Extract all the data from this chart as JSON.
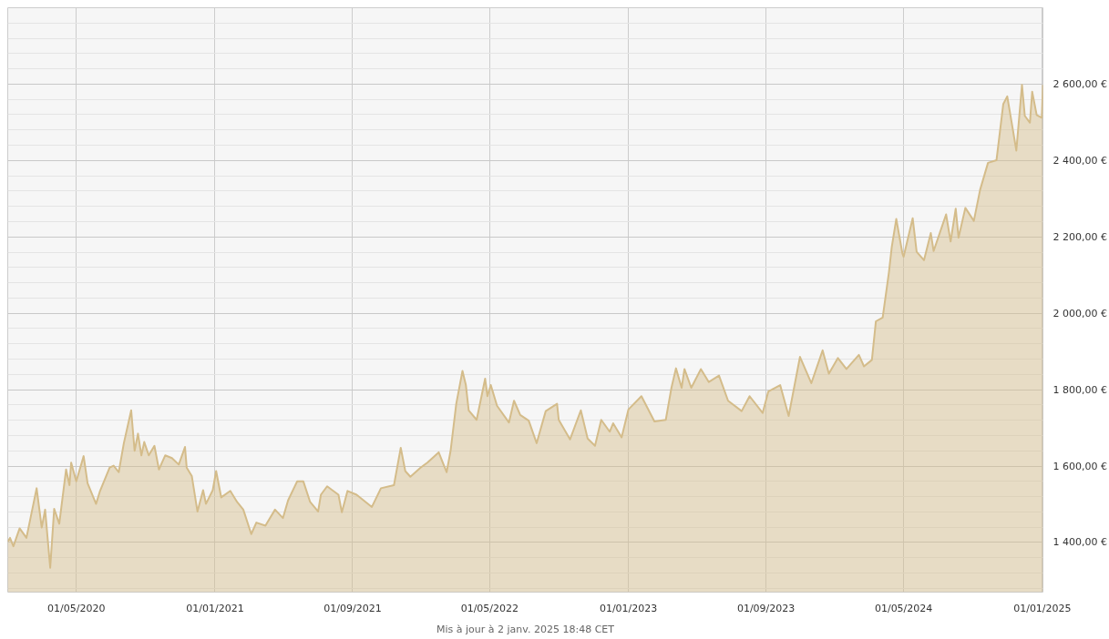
{
  "chart_data": {
    "type": "area",
    "x": [
      "2020-01-01",
      "2020-01-05",
      "2020-01-11",
      "2020-01-22",
      "2020-02-03",
      "2020-02-21",
      "2020-03-01",
      "2020-03-07",
      "2020-03-16",
      "2020-03-23",
      "2020-04-01",
      "2020-04-13",
      "2020-04-19",
      "2020-04-22",
      "2020-05-01",
      "2020-05-14",
      "2020-05-21",
      "2020-06-05",
      "2020-06-12",
      "2020-06-29",
      "2020-07-06",
      "2020-07-15",
      "2020-07-24",
      "2020-08-06",
      "2020-08-12",
      "2020-08-18",
      "2020-08-24",
      "2020-08-29",
      "2020-09-06",
      "2020-09-16",
      "2020-09-24",
      "2020-10-05",
      "2020-10-17",
      "2020-10-29",
      "2020-11-09",
      "2020-11-12",
      "2020-11-21",
      "2020-12-01",
      "2020-12-11",
      "2020-12-16",
      "2020-12-28",
      "2021-01-03",
      "2021-01-12",
      "2021-01-28",
      "2021-02-09",
      "2021-02-20",
      "2021-03-06",
      "2021-03-15",
      "2021-03-31",
      "2021-04-17",
      "2021-05-01",
      "2021-05-10",
      "2021-05-26",
      "2021-06-06",
      "2021-06-18",
      "2021-07-02",
      "2021-07-07",
      "2021-07-18",
      "2021-08-07",
      "2021-08-13",
      "2021-08-23",
      "2021-09-08",
      "2021-10-05",
      "2021-10-21",
      "2021-11-13",
      "2021-11-25",
      "2021-12-03",
      "2021-12-12",
      "2021-12-30",
      "2022-01-11",
      "2022-01-31",
      "2022-02-14",
      "2022-02-21",
      "2022-03-03",
      "2022-03-14",
      "2022-03-20",
      "2022-03-25",
      "2022-04-08",
      "2022-04-23",
      "2022-04-27",
      "2022-05-03",
      "2022-05-14",
      "2022-06-04",
      "2022-06-13",
      "2022-06-24",
      "2022-07-09",
      "2022-07-23",
      "2022-08-08",
      "2022-08-28",
      "2022-08-31",
      "2022-09-20",
      "2022-10-09",
      "2022-10-21",
      "2022-11-03",
      "2022-11-14",
      "2022-11-29",
      "2022-12-05",
      "2022-12-20",
      "2023-01-01",
      "2023-01-24",
      "2023-02-16",
      "2023-03-08",
      "2023-03-18",
      "2023-03-26",
      "2023-04-05",
      "2023-04-10",
      "2023-04-22",
      "2023-05-09",
      "2023-05-23",
      "2023-06-10",
      "2023-06-26",
      "2023-07-20",
      "2023-08-03",
      "2023-08-26",
      "2023-09-05",
      "2023-09-26",
      "2023-10-11",
      "2023-10-31",
      "2023-11-20",
      "2023-12-10",
      "2023-12-21",
      "2024-01-06",
      "2024-01-21",
      "2024-02-12",
      "2024-02-21",
      "2024-03-06",
      "2024-03-13",
      "2024-03-25",
      "2024-04-05",
      "2024-04-10",
      "2024-04-18",
      "2024-04-29",
      "2024-05-01",
      "2024-05-17",
      "2024-05-24",
      "2024-06-06",
      "2024-06-18",
      "2024-06-23",
      "2024-07-15",
      "2024-07-23",
      "2024-08-01",
      "2024-08-06",
      "2024-08-18",
      "2024-09-02",
      "2024-09-13",
      "2024-09-27",
      "2024-10-12",
      "2024-10-24",
      "2024-10-31",
      "2024-11-10",
      "2024-11-16",
      "2024-11-26",
      "2024-12-01",
      "2024-12-10",
      "2024-12-14",
      "2024-12-22",
      "2024-12-31",
      "2025-01-02"
    ],
    "series": [
      {
        "color": "#d4bc8a",
        "values": [
          1402,
          1412,
          1390,
          1437,
          1412,
          1542,
          1439,
          1486,
          1334,
          1488,
          1449,
          1591,
          1550,
          1609,
          1560,
          1626,
          1555,
          1501,
          1535,
          1596,
          1601,
          1584,
          1660,
          1746,
          1640,
          1685,
          1628,
          1663,
          1628,
          1653,
          1591,
          1628,
          1621,
          1604,
          1650,
          1596,
          1574,
          1481,
          1537,
          1501,
          1537,
          1587,
          1518,
          1535,
          1506,
          1486,
          1422,
          1452,
          1444,
          1486,
          1464,
          1510,
          1560,
          1560,
          1506,
          1481,
          1525,
          1547,
          1525,
          1479,
          1535,
          1525,
          1493,
          1542,
          1550,
          1648,
          1587,
          1572,
          1596,
          1609,
          1636,
          1584,
          1640,
          1763,
          1849,
          1812,
          1746,
          1721,
          1829,
          1783,
          1812,
          1758,
          1714,
          1771,
          1734,
          1719,
          1660,
          1744,
          1763,
          1721,
          1670,
          1746,
          1672,
          1653,
          1721,
          1690,
          1712,
          1675,
          1748,
          1783,
          1717,
          1721,
          1805,
          1856,
          1805,
          1854,
          1805,
          1854,
          1820,
          1837,
          1771,
          1744,
          1783,
          1739,
          1795,
          1812,
          1731,
          1886,
          1817,
          1903,
          1842,
          1883,
          1854,
          1891,
          1861,
          1878,
          1979,
          1989,
          2107,
          2173,
          2247,
          2156,
          2148,
          2249,
          2161,
          2139,
          2210,
          2163,
          2259,
          2188,
          2274,
          2198,
          2276,
          2242,
          2323,
          2394,
          2401,
          2548,
          2568,
          2480,
          2426,
          2598,
          2517,
          2499,
          2580,
          2519,
          2512,
          2598
        ]
      }
    ],
    "ylim": [
      1270,
      2800
    ],
    "yticks": [
      {
        "value": 1400,
        "label": "1 400,00 €"
      },
      {
        "value": 1600,
        "label": "1 600,00 €"
      },
      {
        "value": 1800,
        "label": "1 800,00 €"
      },
      {
        "value": 2000,
        "label": "2 000,00 €"
      },
      {
        "value": 2200,
        "label": "2 200,00 €"
      },
      {
        "value": 2400,
        "label": "2 400,00 €"
      },
      {
        "value": 2600,
        "label": "2 600,00 €"
      }
    ],
    "xlim": [
      "2020-01-01",
      "2025-01-02"
    ],
    "xticks": [
      {
        "value": "2020-05-01",
        "label": "01/05/2020"
      },
      {
        "value": "2021-01-01",
        "label": "01/01/2021"
      },
      {
        "value": "2021-09-01",
        "label": "01/09/2021"
      },
      {
        "value": "2022-05-01",
        "label": "01/05/2022"
      },
      {
        "value": "2023-01-01",
        "label": "01/01/2023"
      },
      {
        "value": "2023-09-01",
        "label": "01/09/2023"
      },
      {
        "value": "2024-05-01",
        "label": "01/05/2024"
      },
      {
        "value": "2025-01-01",
        "label": "01/01/2025"
      }
    ],
    "grid": true,
    "annotations": [
      "Mis à jour à 2 janv. 2025 18:48 CET"
    ]
  }
}
